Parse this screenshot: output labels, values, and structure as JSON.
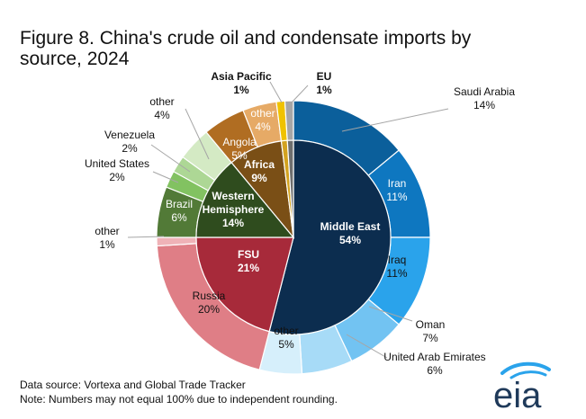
{
  "title_lines": [
    "Figure 8. China's crude oil and condensate imports by",
    "source, 2024"
  ],
  "footnotes": {
    "source": "Data source: Vortexa and Global Trade Tracker",
    "note": "Note: Numbers may not equal 100% due to independent rounding."
  },
  "logo": {
    "text": "eia"
  },
  "chart_data": {
    "type": "pie",
    "subtype": "nested donut (inner ring = regions, outer ring = sources)",
    "title": "Figure 8. China's crude oil and condensate imports by source, 2024",
    "unit": "%",
    "inner_ring": [
      {
        "label": "Middle East",
        "value": 54,
        "color": "#0c2d4f"
      },
      {
        "label": "FSU",
        "value": 21,
        "color": "#a72a3a"
      },
      {
        "label": "Western Hemisphere",
        "value": 14,
        "color": "#2f4c1e"
      },
      {
        "label": "Africa",
        "value": 9,
        "color": "#7a4f16"
      },
      {
        "label": "Asia Pacific",
        "value": 1,
        "color": "#d3a21f"
      },
      {
        "label": "EU",
        "value": 1,
        "color": "#6e6e6e"
      }
    ],
    "outer_ring": [
      {
        "label": "Saudi Arabia",
        "value": 14,
        "color": "#0b5f9b",
        "region": "Middle East"
      },
      {
        "label": "Iran",
        "value": 11,
        "color": "#0e77c0",
        "region": "Middle East"
      },
      {
        "label": "Iraq",
        "value": 11,
        "color": "#2aa3eb",
        "region": "Middle East"
      },
      {
        "label": "Oman",
        "value": 7,
        "color": "#72c3f2",
        "region": "Middle East"
      },
      {
        "label": "United Arab Emirates",
        "value": 6,
        "color": "#a7dbf7",
        "region": "Middle East"
      },
      {
        "label": "other",
        "value": 5,
        "color": "#d6effb",
        "region": "Middle East"
      },
      {
        "label": "Russia",
        "value": 20,
        "color": "#df7e86",
        "region": "FSU"
      },
      {
        "label": "other",
        "value": 1,
        "color": "#efb2b7",
        "region": "FSU"
      },
      {
        "label": "Brazil",
        "value": 6,
        "color": "#527a37",
        "region": "Western Hemisphere"
      },
      {
        "label": "United States",
        "value": 2,
        "color": "#82c261",
        "region": "Western Hemisphere"
      },
      {
        "label": "Venezuela",
        "value": 2,
        "color": "#add795",
        "region": "Western Hemisphere"
      },
      {
        "label": "other",
        "value": 4,
        "color": "#d4eac4",
        "region": "Western Hemisphere"
      },
      {
        "label": "Angola",
        "value": 5,
        "color": "#b06d22",
        "region": "Africa"
      },
      {
        "label": "other",
        "value": 4,
        "color": "#e6aa66",
        "region": "Africa"
      },
      {
        "label": "Asia Pacific",
        "value": 1,
        "color": "#f0c200",
        "region": "Asia Pacific"
      },
      {
        "label": "EU",
        "value": 1,
        "color": "#a6a6a6",
        "region": "EU"
      }
    ]
  }
}
